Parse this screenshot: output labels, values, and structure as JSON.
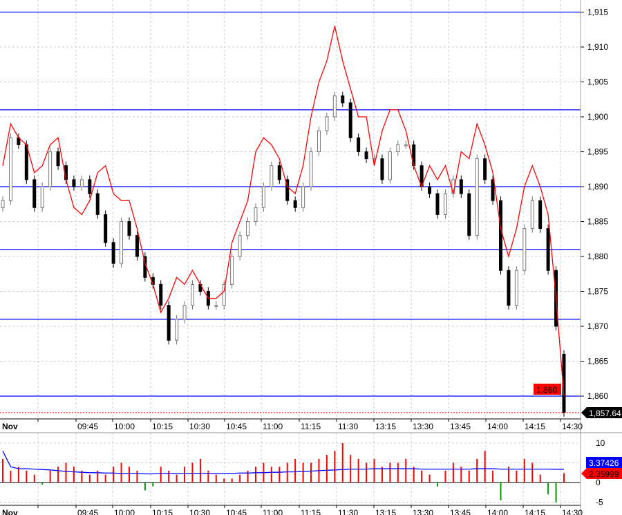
{
  "chart_data": [
    {
      "type": "candlestick",
      "title": "",
      "xlabel": "",
      "ylabel": "",
      "ylim": [
        1857,
        1917
      ],
      "grid": true,
      "price_ticks": [
        "1,915",
        "1,910",
        "1,905",
        "1,900",
        "1,895",
        "1,890",
        "1,885",
        "1,880",
        "1,875",
        "1,870",
        "1,865",
        "1,860"
      ],
      "price_tick_values": [
        1915,
        1910,
        1905,
        1900,
        1895,
        1890,
        1885,
        1880,
        1875,
        1870,
        1865,
        1860
      ],
      "horizontal_levels": [
        1915,
        1901,
        1890,
        1881,
        1871,
        1860
      ],
      "level_color": "#0000ff",
      "level_label": {
        "text": "1,860",
        "color": "#ff0000"
      },
      "last_price": {
        "text": "1,857.64",
        "value": 1857.64,
        "color": "#000000"
      },
      "month_label": "Nov",
      "time_labels": [
        "09:45",
        "10:00",
        "10:15",
        "10:30",
        "10:45",
        "11:00",
        "11:15",
        "11:30",
        "13:15",
        "13:30",
        "13:45",
        "14:00",
        "14:15",
        "14:30"
      ],
      "close": [
        1888,
        1897,
        1896,
        1891,
        1887,
        1890,
        1895,
        1893,
        1891,
        1890,
        1891,
        1889,
        1886,
        1882,
        1879,
        1885,
        1883,
        1880,
        1877,
        1876,
        1873,
        1868,
        1871,
        1873,
        1876,
        1875,
        1873,
        1873,
        1876,
        1880,
        1883,
        1885,
        1887,
        1890,
        1893,
        1891,
        1888,
        1887,
        1890,
        1895,
        1898,
        1900,
        1903,
        1902,
        1897,
        1895,
        1894,
        1894,
        1891,
        1895,
        1896,
        1896,
        1893,
        1890,
        1889,
        1886,
        1889,
        1891,
        1889,
        1883,
        1894,
        1891,
        1888,
        1878,
        1873,
        1878,
        1884,
        1888,
        1884,
        1878,
        1870,
        1857.64
      ],
      "open_last": 1866,
      "red_line": {
        "color": "#ff0000",
        "values": [
          1893,
          1899,
          1897,
          1896,
          1892,
          1893,
          1896,
          1897,
          1891,
          1887,
          1886,
          1888,
          1892,
          1893,
          1889,
          1888,
          1888,
          1884,
          1879,
          1876,
          1872,
          1874,
          1877,
          1876,
          1878,
          1876,
          1874,
          1874,
          1875,
          1882,
          1885,
          1888,
          1895,
          1897,
          1896,
          1894,
          1890,
          1889,
          1893,
          1900,
          1905,
          1908,
          1913,
          1908,
          1904,
          1900,
          1900,
          1893,
          1898,
          1901,
          1901,
          1898,
          1893,
          1890,
          1893,
          1891,
          1893,
          1889,
          1895,
          1894,
          1899,
          1896,
          1892,
          1884,
          1880,
          1884,
          1890,
          1893,
          1890,
          1886,
          1874,
          1860
        ]
      }
    },
    {
      "type": "bar",
      "title": "",
      "ylim": [
        -7,
        12
      ],
      "grid": true,
      "y_ticks": [
        "10",
        "0",
        "-5"
      ],
      "y_tick_values": [
        10,
        0,
        -5
      ],
      "histogram": {
        "positive_color": "#ff0000",
        "negative_color": "#009900",
        "values": [
          6,
          3,
          4,
          3,
          2,
          -0.5,
          3,
          4,
          5,
          4,
          3,
          2,
          3,
          2,
          4,
          5,
          4,
          3,
          -2,
          -1,
          4,
          3,
          2,
          4,
          5,
          6,
          3,
          2,
          1,
          1,
          2,
          3,
          4,
          5,
          4,
          4,
          5,
          6,
          5,
          5,
          6,
          7,
          8,
          10,
          7,
          6,
          5,
          6,
          4,
          5,
          5,
          6,
          4,
          3,
          2,
          -1,
          3,
          5,
          4,
          3,
          6,
          8,
          3,
          -4.5,
          4,
          3,
          6,
          5,
          2,
          -3,
          -5,
          2.36
        ]
      },
      "signal_line": {
        "color": "#0000ff",
        "values": [
          8,
          4,
          3.5,
          3.5,
          3.4,
          3.3,
          3.2,
          3,
          2.8,
          2.7,
          2.6,
          2.5,
          2.5,
          2.4,
          2.4,
          2.3,
          2.3,
          2.3,
          2.2,
          2.2,
          2.3,
          2.3,
          2.3,
          2.3,
          2.3,
          2.3,
          2.3,
          2.3,
          2.3,
          2.3,
          2.4,
          2.4,
          2.5,
          2.5,
          2.6,
          2.6,
          2.7,
          2.7,
          2.8,
          2.9,
          3,
          3.1,
          3.2,
          3.3,
          3.4,
          3.4,
          3.4,
          3.5,
          3.5,
          3.5,
          3.5,
          3.5,
          3.5,
          3.4,
          3.4,
          3.4,
          3.4,
          3.4,
          3.4,
          3.4,
          3.5,
          3.5,
          3.5,
          3.4,
          3.4,
          3.4,
          3.4,
          3.4,
          3.4,
          3.4,
          3.37,
          3.37
        ]
      },
      "signal_label": {
        "text": "3.37426",
        "color": "#0000ff"
      },
      "histogram_label": {
        "text": "2.35999",
        "color": "#ff0000"
      }
    }
  ]
}
